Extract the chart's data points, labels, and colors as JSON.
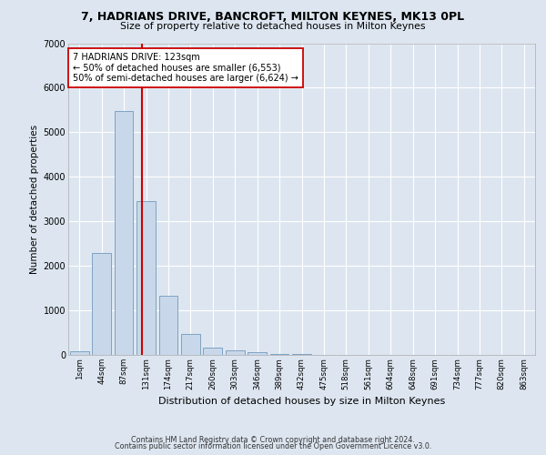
{
  "title": "7, HADRIANS DRIVE, BANCROFT, MILTON KEYNES, MK13 0PL",
  "subtitle": "Size of property relative to detached houses in Milton Keynes",
  "xlabel": "Distribution of detached houses by size in Milton Keynes",
  "ylabel": "Number of detached properties",
  "bar_labels": [
    "1sqm",
    "44sqm",
    "87sqm",
    "131sqm",
    "174sqm",
    "217sqm",
    "260sqm",
    "303sqm",
    "346sqm",
    "389sqm",
    "432sqm",
    "475sqm",
    "518sqm",
    "561sqm",
    "604sqm",
    "648sqm",
    "691sqm",
    "734sqm",
    "777sqm",
    "820sqm",
    "863sqm"
  ],
  "bar_values": [
    75,
    2280,
    5480,
    3450,
    1320,
    470,
    155,
    95,
    55,
    30,
    15,
    8,
    4,
    2,
    1,
    1,
    0,
    0,
    0,
    0,
    0
  ],
  "bar_color": "#c8d8ea",
  "bar_edgecolor": "#7099bb",
  "ylim": [
    0,
    7000
  ],
  "vline_color": "#cc0000",
  "annotation_title": "7 HADRIANS DRIVE: 123sqm",
  "annotation_line1": "← 50% of detached houses are smaller (6,553)",
  "annotation_line2": "50% of semi-detached houses are larger (6,624) →",
  "annotation_box_color": "#ffffff",
  "annotation_box_edgecolor": "#cc0000",
  "footer1": "Contains HM Land Registry data © Crown copyright and database right 2024.",
  "footer2": "Contains public sector information licensed under the Open Government Licence v3.0.",
  "background_color": "#dde6f0",
  "plot_background": "#dde6f0"
}
